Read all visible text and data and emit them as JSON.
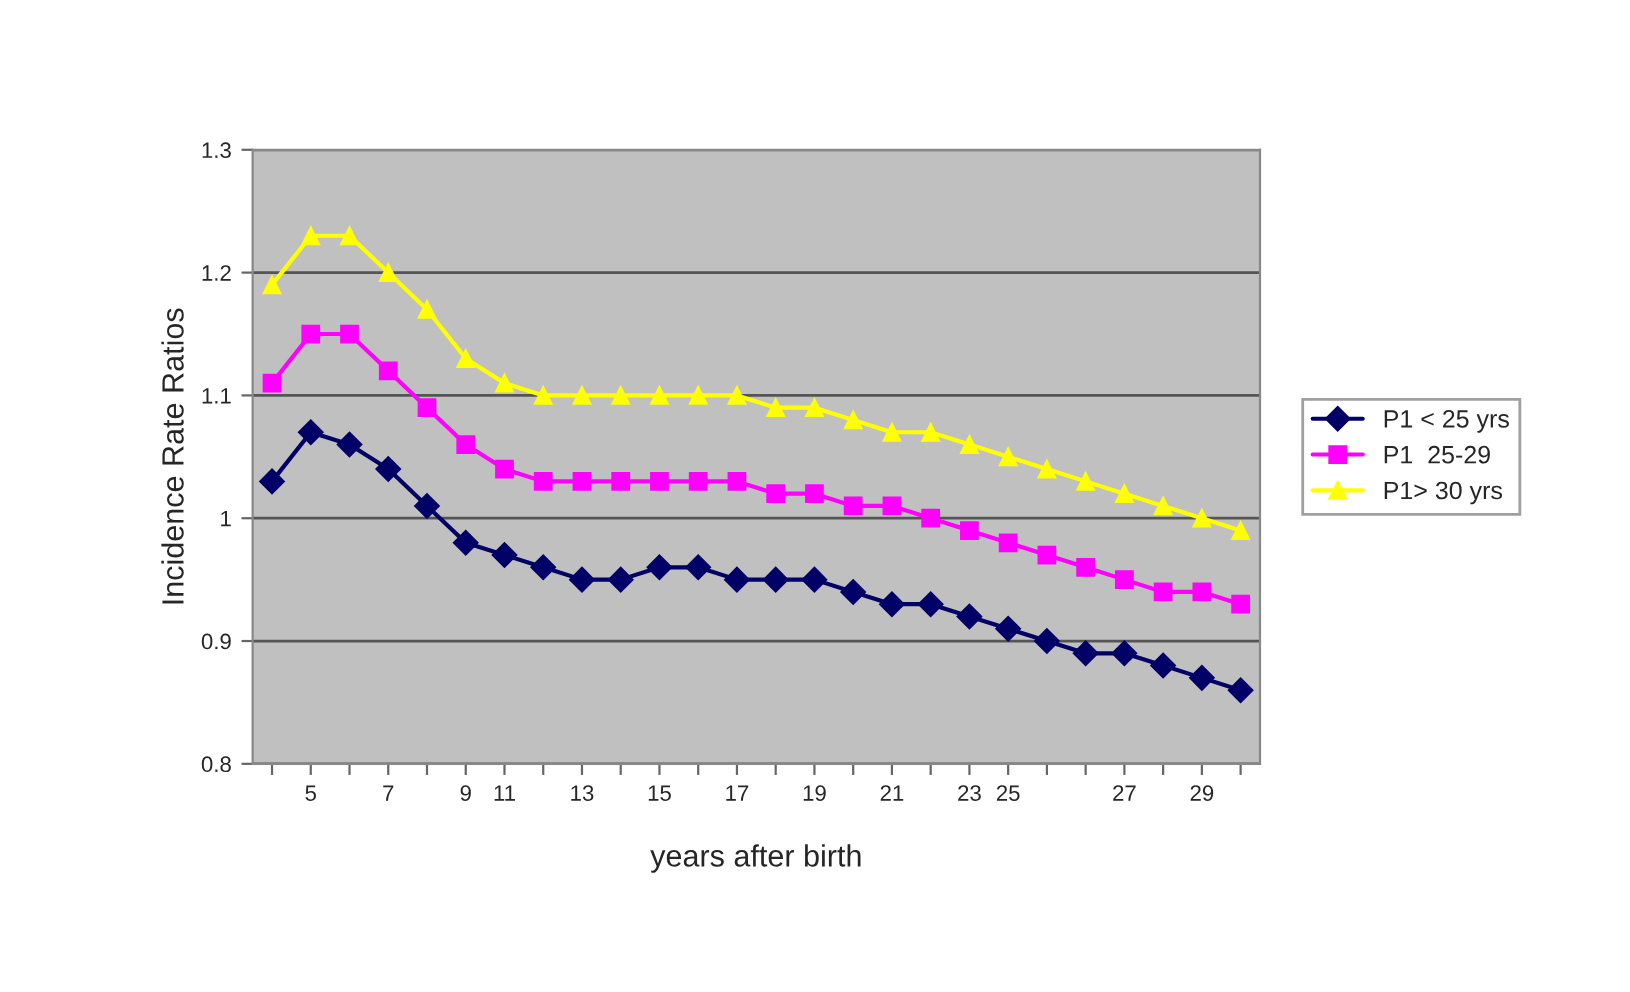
{
  "chart_data": {
    "type": "line",
    "xlabel": "years after birth",
    "ylabel": "Incidence Rate Ratios",
    "categories": [
      null,
      "5",
      null,
      "7",
      null,
      "9",
      "11",
      null,
      "13",
      null,
      "15",
      null,
      "17",
      null,
      "19",
      null,
      "21",
      null,
      "23",
      "25",
      null,
      null,
      "27",
      null,
      "29",
      null
    ],
    "series": [
      {
        "name": "P1 < 25 yrs",
        "color": "#000066",
        "marker": "diamond",
        "values": [
          1.03,
          1.07,
          1.06,
          1.04,
          1.01,
          0.98,
          0.97,
          0.96,
          0.95,
          0.95,
          0.96,
          0.96,
          0.95,
          0.95,
          0.95,
          0.94,
          0.93,
          0.93,
          0.92,
          0.91,
          0.9,
          0.89,
          0.89,
          0.88,
          0.87,
          0.86
        ]
      },
      {
        "name": "P1  25-29",
        "color": "#ff00ff",
        "marker": "square",
        "values": [
          1.11,
          1.15,
          1.15,
          1.12,
          1.09,
          1.06,
          1.04,
          1.03,
          1.03,
          1.03,
          1.03,
          1.03,
          1.03,
          1.02,
          1.02,
          1.01,
          1.01,
          1.0,
          0.99,
          0.98,
          0.97,
          0.96,
          0.95,
          0.94,
          0.94,
          0.93
        ]
      },
      {
        "name": "P1> 30 yrs",
        "color": "#ffff00",
        "marker": "triangle",
        "values": [
          1.19,
          1.23,
          1.23,
          1.2,
          1.17,
          1.13,
          1.11,
          1.1,
          1.1,
          1.1,
          1.1,
          1.1,
          1.1,
          1.09,
          1.09,
          1.08,
          1.07,
          1.07,
          1.06,
          1.05,
          1.04,
          1.03,
          1.02,
          1.01,
          1.0,
          0.99
        ]
      }
    ],
    "ylim": [
      0.8,
      1.3
    ],
    "yticks": [
      0.8,
      0.9,
      1,
      1.1,
      1.2,
      1.3
    ],
    "grid": "y",
    "legend": "right"
  }
}
